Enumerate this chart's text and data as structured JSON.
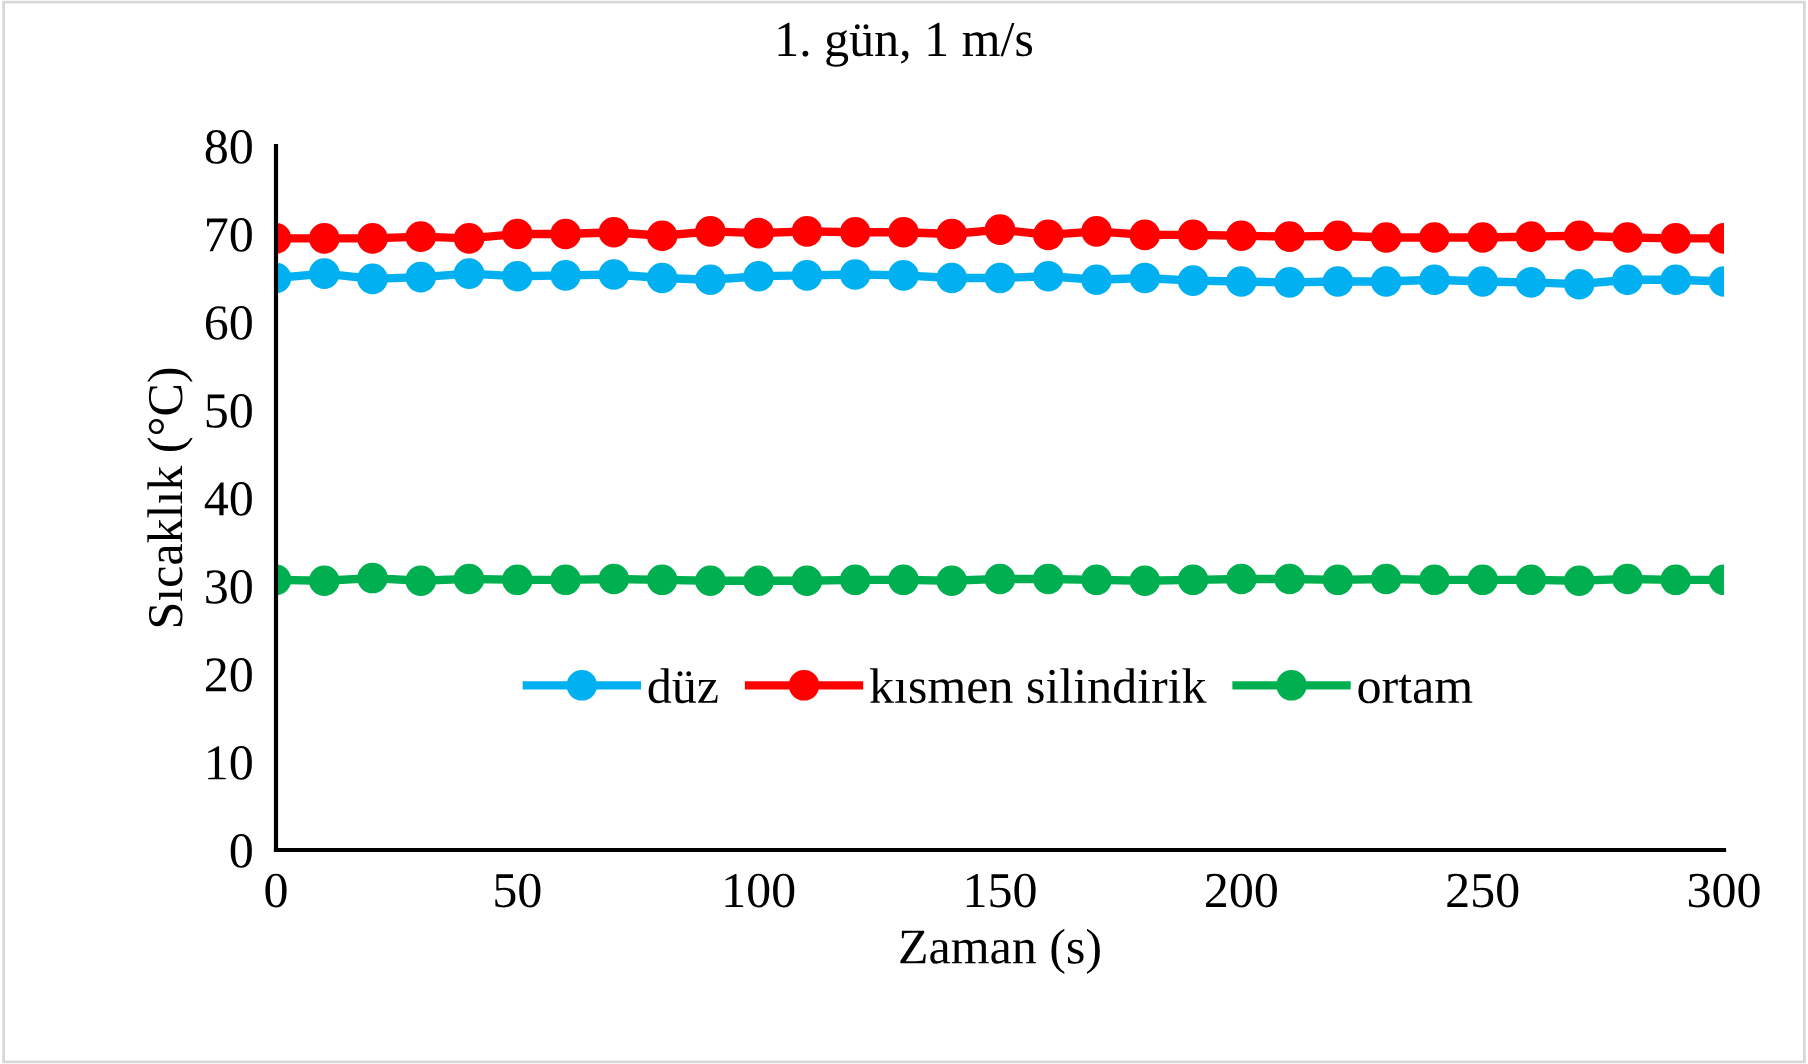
{
  "chart_data": {
    "type": "line",
    "title": "1. gün, 1 m/s",
    "xlabel": "Zaman (s)",
    "ylabel": "Sıcaklık (°C)",
    "x": [
      0,
      10,
      20,
      30,
      40,
      50,
      60,
      70,
      80,
      90,
      100,
      110,
      120,
      130,
      140,
      150,
      160,
      170,
      180,
      190,
      200,
      210,
      220,
      230,
      240,
      250,
      260,
      270,
      280,
      290,
      300
    ],
    "series": [
      {
        "name": "düz",
        "color": "#00b0f0",
        "values": [
          65,
          65.5,
          64.9,
          65.1,
          65.5,
          65.2,
          65.3,
          65.4,
          65,
          64.8,
          65.2,
          65.3,
          65.4,
          65.3,
          65,
          65,
          65.2,
          64.8,
          65,
          64.7,
          64.6,
          64.5,
          64.6,
          64.6,
          64.8,
          64.6,
          64.5,
          64.3,
          64.8,
          64.8,
          64.6
        ]
      },
      {
        "name": "kısmen silindirik",
        "color": "#ff0000",
        "values": [
          69.5,
          69.5,
          69.5,
          69.7,
          69.5,
          70,
          70,
          70.2,
          69.8,
          70.3,
          70.1,
          70.3,
          70.2,
          70.2,
          70,
          70.5,
          69.9,
          70.3,
          69.9,
          69.9,
          69.8,
          69.7,
          69.8,
          69.6,
          69.6,
          69.6,
          69.7,
          69.8,
          69.6,
          69.5,
          69.5
        ]
      },
      {
        "name": "ortam",
        "color": "#00b050",
        "values": [
          30.7,
          30.6,
          30.9,
          30.6,
          30.8,
          30.7,
          30.7,
          30.8,
          30.7,
          30.6,
          30.6,
          30.6,
          30.7,
          30.7,
          30.6,
          30.8,
          30.8,
          30.7,
          30.6,
          30.7,
          30.8,
          30.8,
          30.7,
          30.8,
          30.7,
          30.7,
          30.7,
          30.6,
          30.8,
          30.7,
          30.7
        ]
      }
    ],
    "xlim": [
      0,
      300
    ],
    "xticks": [
      0,
      50,
      100,
      150,
      200,
      250,
      300
    ],
    "ylim": [
      0,
      80
    ],
    "yticks": [
      0,
      10,
      20,
      30,
      40,
      50,
      60,
      70,
      80
    ],
    "grid": false,
    "legend": "bottom",
    "marker": "circle",
    "line_style": "solid"
  }
}
